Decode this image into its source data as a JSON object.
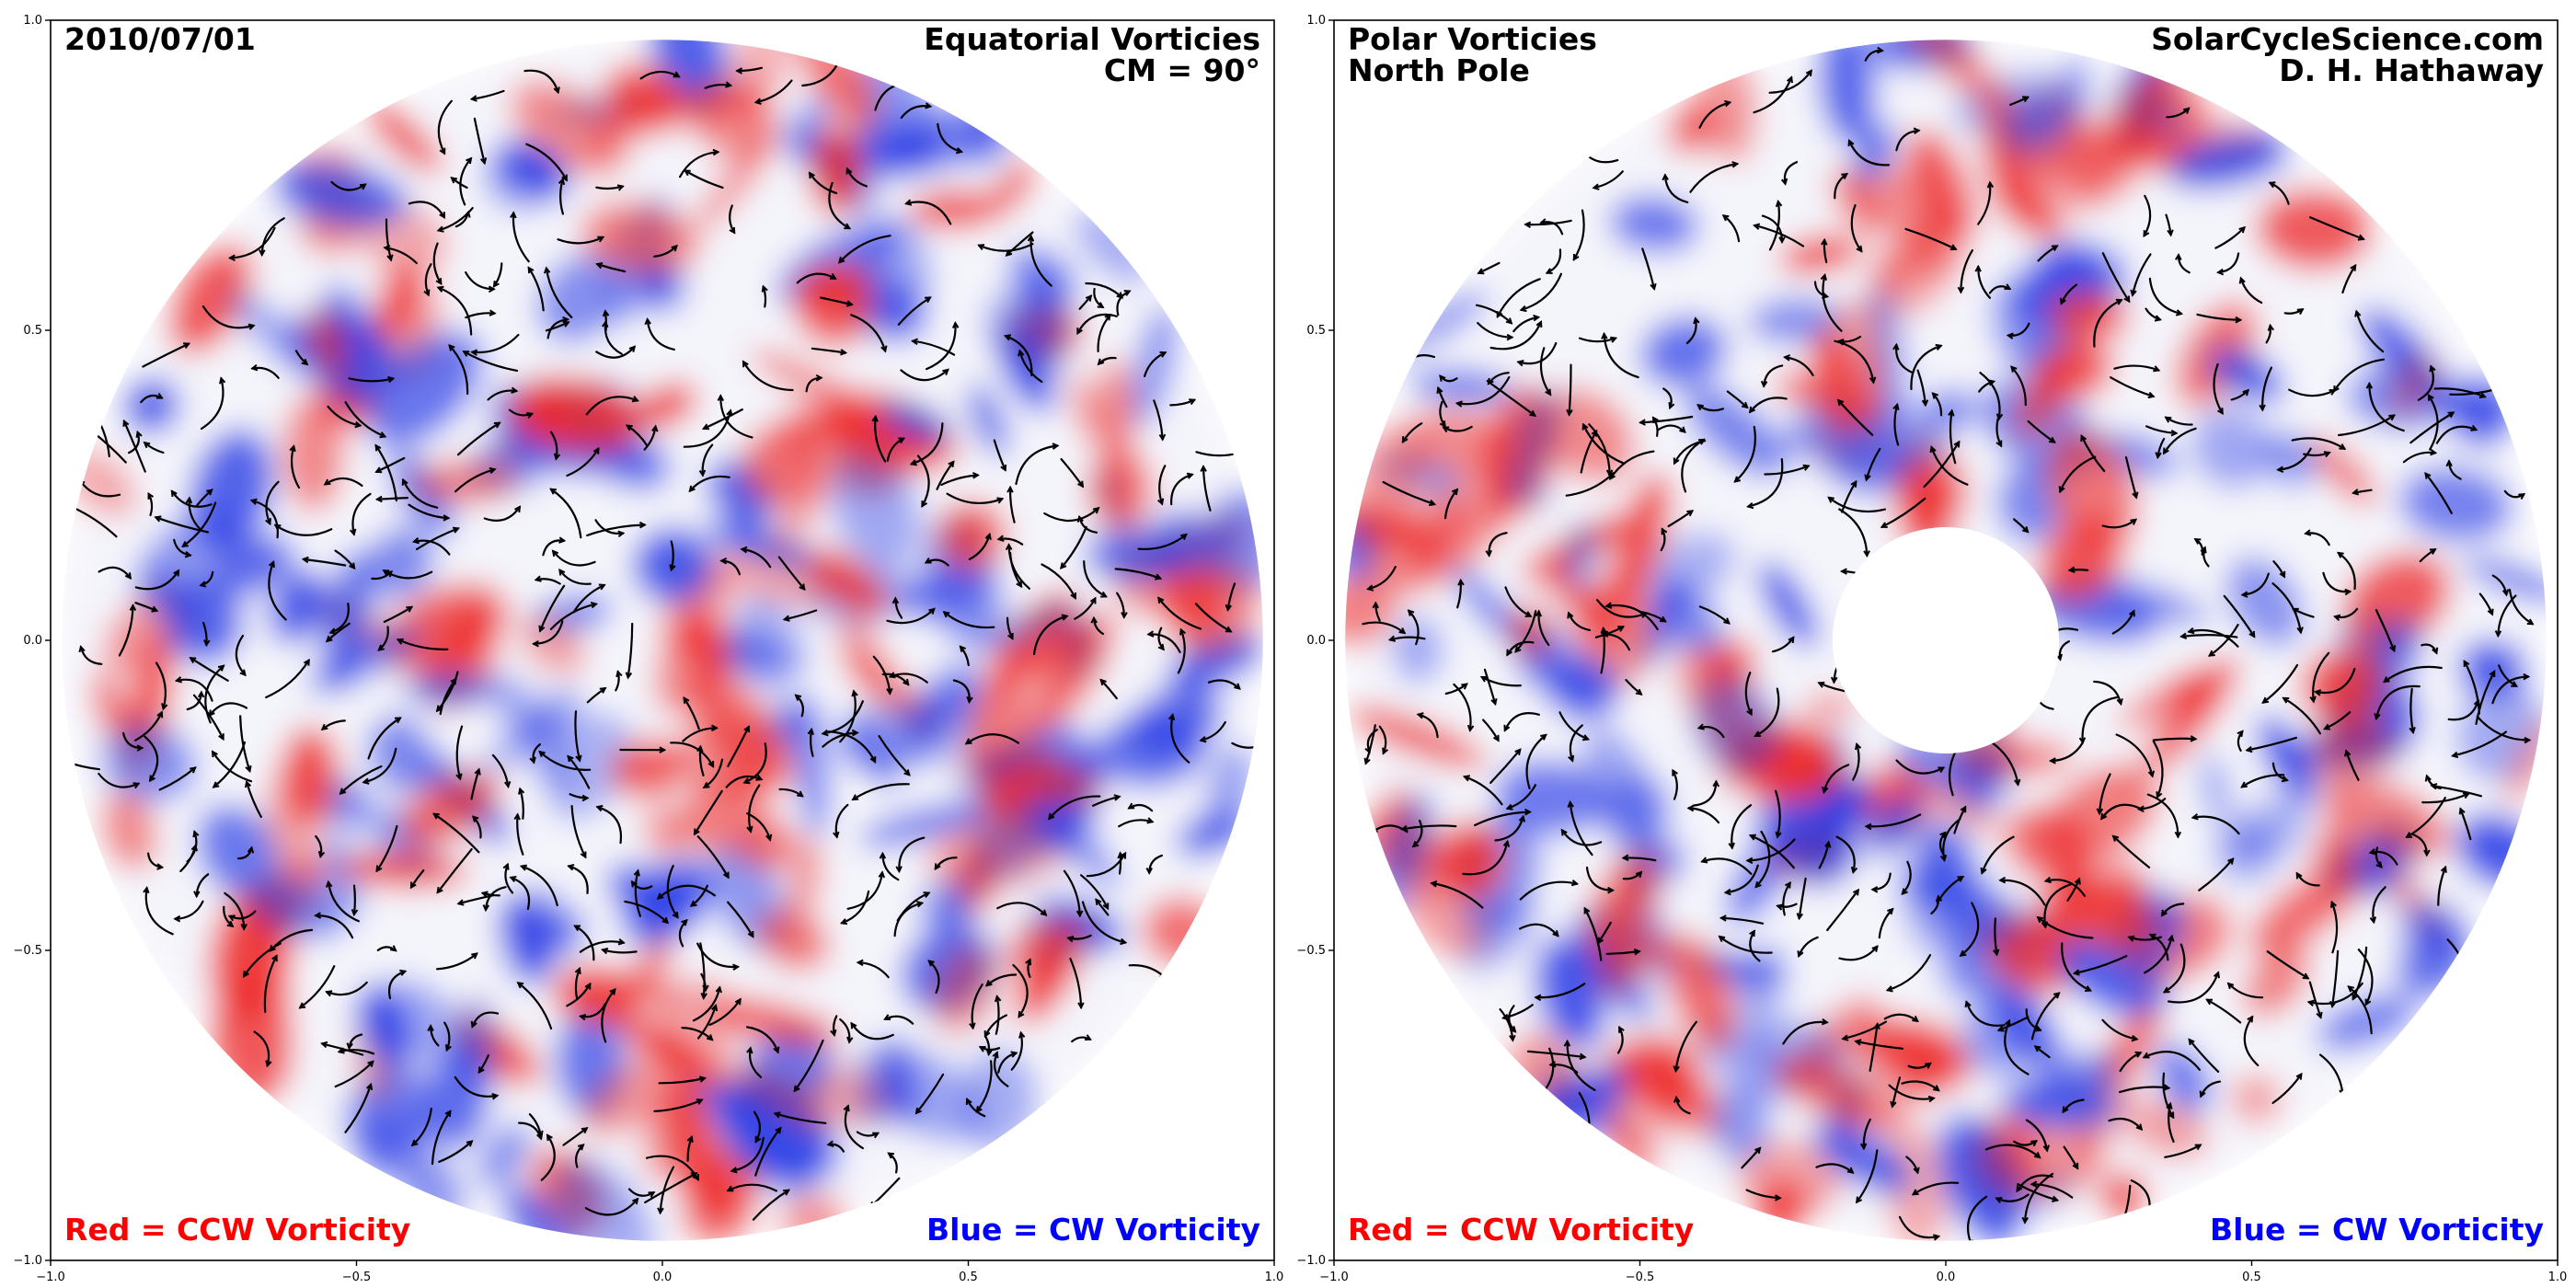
{
  "chart_data": [
    {
      "type": "heatmap",
      "panel": "left",
      "date_label": "2010/07/01",
      "title_line1": "Equatorial Vorticies",
      "title_line2": "CM = 90°",
      "legend_left": "Red = CCW Vorticity",
      "legend_right": "Blue = CW Vorticity",
      "xlim": [
        -1.0,
        1.0
      ],
      "ylim": [
        -1.0,
        1.0
      ],
      "x_ticks": [
        "−1.0",
        "−0.5",
        "0.0",
        "0.5",
        "1.0"
      ],
      "y_ticks": [
        "−1.0",
        "−0.5",
        "0.0",
        "0.5",
        "1.0"
      ],
      "disk_radius": 0.975,
      "hole_radius": 0,
      "colors": {
        "positive": "#ee2a2a",
        "negative": "#2a3ee6",
        "legend_positive": "#ff0000",
        "legend_negative": "#0000ff"
      }
    },
    {
      "type": "heatmap",
      "panel": "right",
      "title_left_line1": "Polar Vorticies",
      "title_left_line2": "North Pole",
      "credit_line1": "SolarCycleScience.com",
      "credit_line2": "D. H. Hathaway",
      "legend_left": "Red = CCW Vorticity",
      "legend_right": "Blue = CW Vorticity",
      "xlim": [
        -1.0,
        1.0
      ],
      "ylim": [
        -1.0,
        1.0
      ],
      "x_ticks": [
        "−1.0",
        "−0.5",
        "0.0",
        "0.5",
        "1.0"
      ],
      "y_ticks": [
        "−1.0",
        "−0.5",
        "0.0",
        "0.5",
        "1.0"
      ],
      "disk_radius": 0.975,
      "hole_radius": 0.185,
      "colors": {
        "positive": "#ee2a2a",
        "negative": "#2a3ee6",
        "legend_positive": "#ff0000",
        "legend_negative": "#0000ff"
      }
    }
  ]
}
